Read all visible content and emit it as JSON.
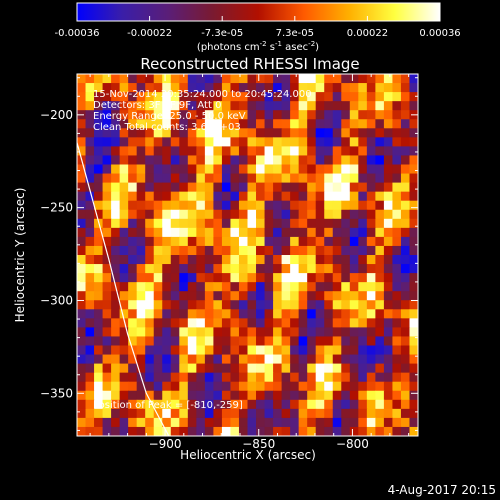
{
  "colorbar": {
    "ticks": [
      "-0.00036",
      "-0.00022",
      "-7.3e-05",
      "7.3e-05",
      "0.00022",
      "0.00036"
    ],
    "unit_parts": [
      "(photons cm",
      "-2",
      " s",
      "-1",
      " asec",
      "-2",
      ")"
    ],
    "range": [
      -0.00036,
      0.00036
    ]
  },
  "image_info": {
    "line1": "15-Nov-2014 20:35:24.000 to 20:45:24.000",
    "line2": "Detectors: 3F 6F 9F, Att 0",
    "line3": "Energy Range: 25.0 - 50.0 keV",
    "line4": "Clean     Total counts: 3.60E+03",
    "peak_label": "Position of Peak = [-810,-259]"
  },
  "footer": {
    "date": "4-Aug-2017 20:15"
  },
  "chart_data": {
    "type": "heatmap",
    "title": "Reconstructed RHESSI Image",
    "xlabel": "Heliocentric X (arcsec)",
    "ylabel": "Heliocentric Y (arcsec)",
    "xlim": [
      -947,
      -765
    ],
    "ylim": [
      -373,
      -178
    ],
    "x_ticks": [
      -900,
      -850,
      -800
    ],
    "y_ticks": [
      -200,
      -250,
      -300,
      -350
    ],
    "peak_position": [
      -810,
      -259
    ],
    "limb_curve": {
      "x": [
        -947,
        -930,
        -920,
        -910,
        -898
      ],
      "y": [
        -215,
        -278,
        -318,
        -350,
        -373
      ]
    },
    "grid_cells": [
      40,
      40
    ],
    "grid": false,
    "legend": "colorbar-top",
    "colormap_stops": [
      "#0000ff",
      "#3a1ea8",
      "#5a1e78",
      "#7a1a30",
      "#b21000",
      "#ff5a00",
      "#ffb000",
      "#ffff40",
      "#ffffff"
    ]
  }
}
